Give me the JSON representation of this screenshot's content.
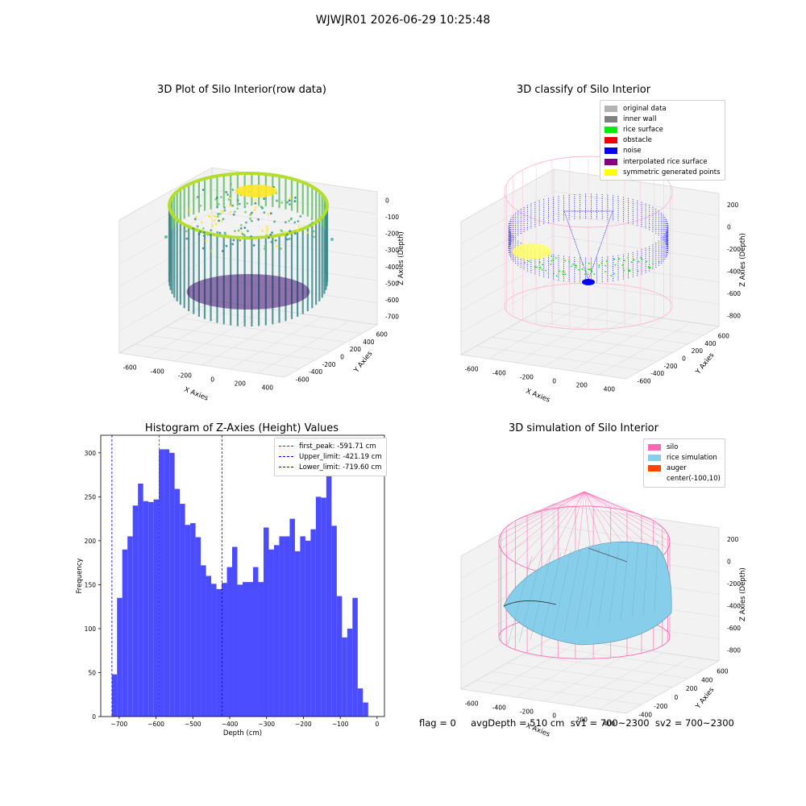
{
  "suptitle": "WJWJR01 2026-06-29 10:25:48",
  "panels": {
    "raw": {
      "title": "3D Plot of Silo Interior(row data)",
      "xlabel": "X Axies",
      "ylabel": "Y Axies",
      "zlabel": "Z Axies (Depth)",
      "xticks": [
        "-600",
        "-400",
        "-200",
        "0",
        "200",
        "400"
      ],
      "yticks": [
        "-600",
        "-400",
        "-200",
        "0",
        "200",
        "400",
        "600"
      ],
      "zticks": [
        "0",
        "-100",
        "-200",
        "-300",
        "-400",
        "-500",
        "-600",
        "-700"
      ]
    },
    "classify": {
      "title": "3D classify of Silo Interior",
      "xlabel": "X Axies",
      "ylabel": "Y Axies",
      "zlabel": "Z Axies (Depth)",
      "xticks": [
        "-600",
        "-400",
        "-200",
        "0",
        "200",
        "400"
      ],
      "yticks": [
        "-600",
        "-400",
        "-200",
        "0",
        "200",
        "400",
        "600"
      ],
      "zticks": [
        "200",
        "0",
        "-200",
        "-400",
        "-600",
        "-800"
      ],
      "legend": [
        {
          "label": "original data",
          "color": "#b3b3b3"
        },
        {
          "label": "inner wall",
          "color": "#808080"
        },
        {
          "label": "rice surface",
          "color": "#00ee00"
        },
        {
          "label": "obstacle",
          "color": "#ee0000"
        },
        {
          "label": "noise",
          "color": "#0000ee"
        },
        {
          "label": "interpolated rice surface",
          "color": "#800080"
        },
        {
          "label": "symmetric generated points",
          "color": "#ffff00"
        }
      ]
    },
    "histogram": {
      "title": "Histogram of Z-Axies (Height) Values",
      "legend": [
        {
          "label": "first_peak: -591.71 cm",
          "color": "#ff0000"
        },
        {
          "label": "Upper_limit: -421.19 cm",
          "color": "#0000ff"
        },
        {
          "label": "Lower_limit: -719.60 cm",
          "color": "#0000ff"
        }
      ]
    },
    "simulation": {
      "title": "3D simulation of Silo Interior",
      "xlabel": "X Axies",
      "ylabel": "Y Axies",
      "zlabel": "Z Axies (Depth)",
      "xticks": [
        "-600",
        "-400",
        "-200",
        "0",
        "200",
        "400"
      ],
      "yticks": [
        "-400",
        "-200",
        "0",
        "200",
        "400",
        "600"
      ],
      "zticks": [
        "200",
        "0",
        "-200",
        "-400",
        "-600",
        "-800"
      ],
      "legend": [
        {
          "label": "silo",
          "color": "#ff69b4"
        },
        {
          "label": "rice simulation",
          "color": "#87ceeb"
        },
        {
          "label": "auger",
          "color": "#ff4500"
        },
        {
          "label": "center(-100,10)",
          "color": ""
        }
      ]
    }
  },
  "footer": "flag = 0     avgDepth = 510 cm  sv1 = 700~2300  sv2 = 700~2300",
  "chart_data": [
    {
      "type": "bar",
      "title": "Histogram of Z-Axies (Height) Values",
      "xlabel": "Depth (cm)",
      "ylabel": "Frequency",
      "xlim": [
        -750,
        20
      ],
      "ylim": [
        0,
        320
      ],
      "xticks": [
        -700,
        -600,
        -500,
        -400,
        -300,
        -200,
        -100,
        0
      ],
      "yticks": [
        0,
        50,
        100,
        150,
        200,
        250,
        300
      ],
      "bin_start": -720,
      "bin_width": 14.2,
      "values": [
        48,
        135,
        190,
        205,
        240,
        265,
        245,
        244,
        247,
        304,
        304,
        300,
        259,
        242,
        218,
        220,
        204,
        172,
        160,
        151,
        145,
        152,
        170,
        193,
        150,
        153,
        153,
        170,
        153,
        215,
        190,
        195,
        205,
        205,
        225,
        188,
        205,
        200,
        213,
        250,
        249,
        280,
        217,
        137,
        90,
        100,
        135,
        32,
        16
      ],
      "color": "#4b4bff",
      "vlines": [
        {
          "x": -591.71,
          "color": "#ff0000",
          "label": "first_peak: -591.71 cm"
        },
        {
          "x": -421.19,
          "color": "#0000ff",
          "label": "Upper_limit: -421.19 cm"
        },
        {
          "x": -719.6,
          "color": "#0000ff",
          "label": "Lower_limit: -719.60 cm"
        }
      ]
    }
  ]
}
